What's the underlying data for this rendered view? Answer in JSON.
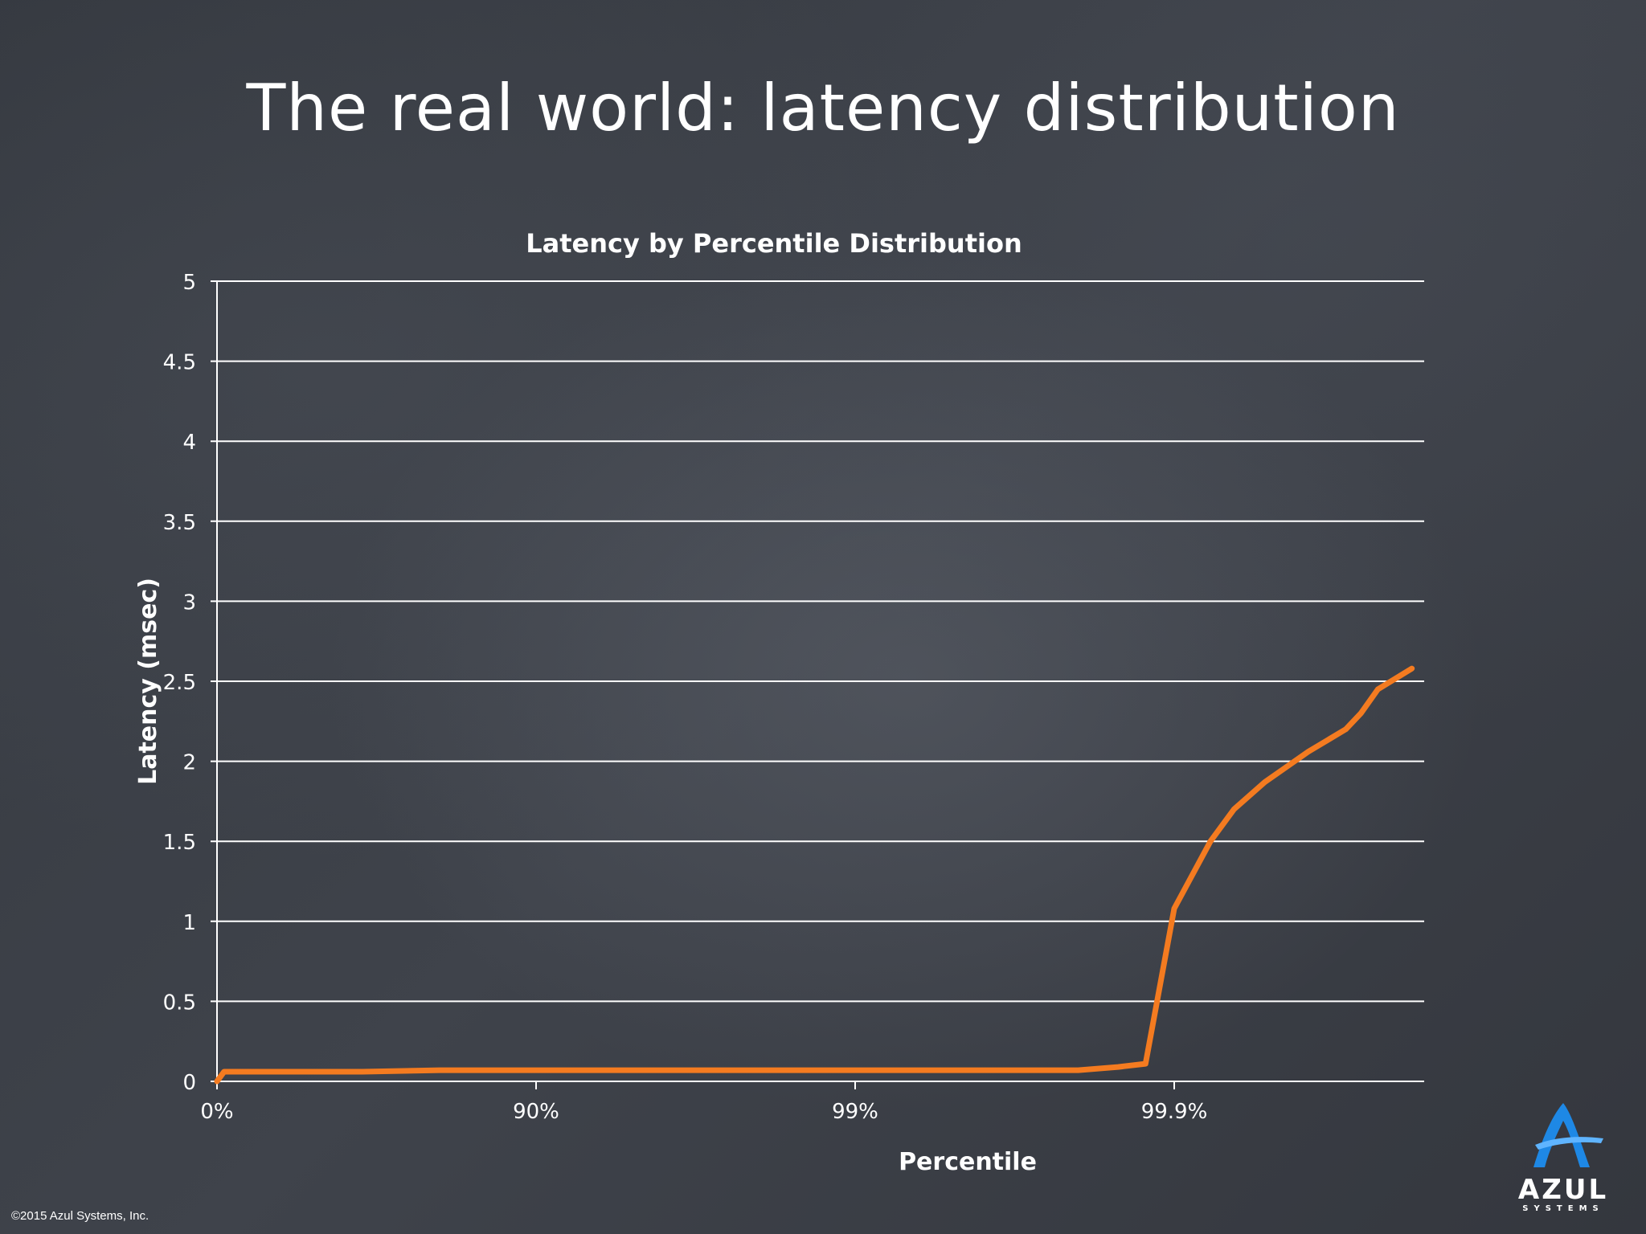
{
  "slide": {
    "title": "The real world: latency distribution",
    "copyright": "©2015 Azul Systems, Inc.",
    "logo_text": "AZUL",
    "logo_subtext": "SYSTEMS"
  },
  "colors": {
    "background": "#3b3f47",
    "text": "#ffffff",
    "gridline": "#ffffff",
    "series": "#f47b20",
    "logo_blue": "#1e88e5"
  },
  "chart_data": {
    "type": "line",
    "title": "Latency by Percentile Distribution",
    "xlabel": "Percentile",
    "ylabel": "Latency (msec)",
    "x_scale": "log-percentile",
    "x_ticks": [
      "0%",
      "90%",
      "99%",
      "99.9%"
    ],
    "y_ticks": [
      "0",
      "0.5",
      "1",
      "1.5",
      "2",
      "2.5",
      "3",
      "3.5",
      "4",
      "4.5",
      "5"
    ],
    "ylim": [
      0,
      5
    ],
    "grid": true,
    "legend": "none",
    "series": [
      {
        "x": [
          0,
          5,
          30,
          50,
          65,
          80,
          98.0,
          99.0,
          99.5,
          99.7,
          99.75,
          99.8,
          99.85,
          99.877,
          99.9,
          99.923,
          99.935,
          99.948,
          99.962,
          99.971,
          99.974,
          99.977,
          99.982
        ],
        "y": [
          0,
          0.06,
          0.06,
          0.06,
          0.06,
          0.07,
          0.07,
          0.07,
          0.07,
          0.07,
          0.07,
          0.07,
          0.09,
          0.11,
          1.08,
          1.5,
          1.7,
          1.87,
          2.06,
          2.2,
          2.3,
          2.45,
          2.58
        ]
      }
    ]
  }
}
